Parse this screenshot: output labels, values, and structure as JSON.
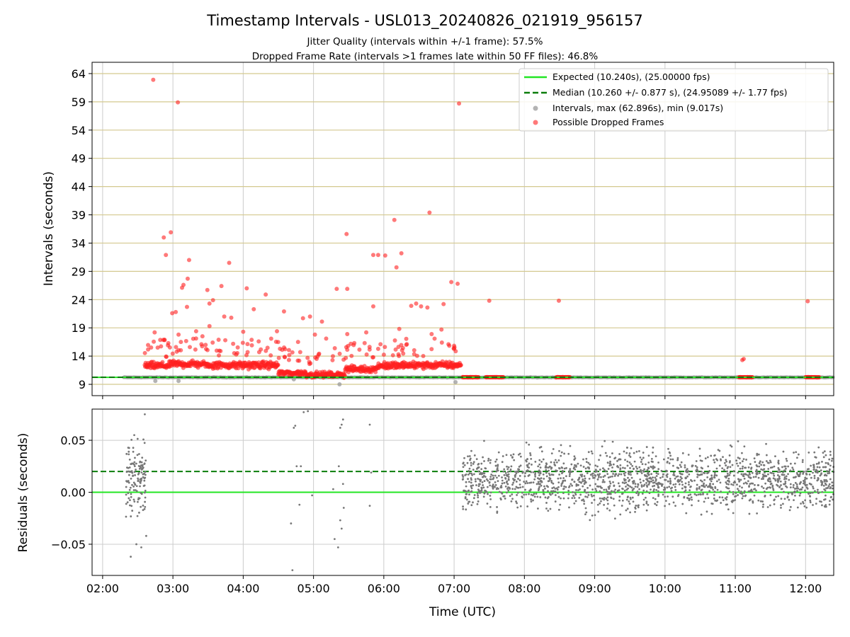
{
  "chart_data": [
    {
      "type": "scatter",
      "title": "Timestamp Intervals - USL013_20240826_021919_956157",
      "subtitle_lines": [
        "Jitter Quality (intervals within +/-1 frame): 57.5%",
        "Dropped Frame Rate (intervals >1 frames late within 50 FF files): 46.8%"
      ],
      "ylabel": "Intervals (seconds)",
      "xlabel": "",
      "xlim_hours": [
        1.85,
        12.4
      ],
      "ylim": [
        7.0,
        66.0
      ],
      "y_ticks": [
        9,
        14,
        19,
        24,
        29,
        34,
        39,
        44,
        49,
        54,
        59,
        64
      ],
      "y_tick_labels": [
        "9",
        "14",
        "19",
        "24",
        "29",
        "34",
        "39",
        "44",
        "49",
        "54",
        "59",
        "64"
      ],
      "grid": true,
      "legend_placement": "top-right",
      "legend": [
        "Expected (10.240s), (25.00000 fps)",
        "Median (10.260 +/- 0.877 s), (24.95089 +/- 1.77 fps)",
        "Intervals, max (62.896s), min (9.017s)",
        "Possible Dropped Frames"
      ],
      "expected_interval": 10.24,
      "median_interval": 10.26,
      "max_interval": 62.896,
      "min_interval": 9.017,
      "colors": {
        "expected": "#22e622",
        "median": "#0a7d0a",
        "intervals": "#9a9a9a",
        "dropped": "#ff2020",
        "gridline": "#d4c98f",
        "vgrid": "#cccccc"
      },
      "series": [
        {
          "name": "Possible Dropped Frames",
          "band_outliers": [
            [
              2.72,
              62.9
            ],
            [
              3.07,
              58.9
            ],
            [
              7.07,
              58.7
            ],
            [
              6.65,
              39.4
            ],
            [
              6.15,
              38.1
            ],
            [
              2.97,
              35.9
            ],
            [
              2.87,
              35.0
            ],
            [
              5.47,
              35.6
            ],
            [
              2.9,
              31.9
            ],
            [
              3.23,
              31.0
            ],
            [
              5.85,
              31.9
            ],
            [
              5.92,
              31.9
            ],
            [
              6.25,
              32.2
            ],
            [
              6.02,
              31.8
            ],
            [
              3.8,
              30.5
            ],
            [
              6.18,
              29.7
            ],
            [
              3.15,
              26.6
            ],
            [
              3.21,
              27.7
            ],
            [
              3.13,
              26.1
            ],
            [
              3.69,
              26.4
            ],
            [
              4.05,
              26.0
            ],
            [
              5.33,
              25.9
            ],
            [
              5.48,
              25.9
            ],
            [
              6.96,
              27.1
            ],
            [
              7.05,
              26.8
            ],
            [
              3.49,
              25.7
            ],
            [
              4.32,
              24.9
            ],
            [
              6.46,
              23.3
            ],
            [
              6.39,
              22.9
            ],
            [
              3.2,
              22.7
            ],
            [
              3.52,
              23.3
            ],
            [
              4.15,
              22.3
            ],
            [
              5.85,
              22.8
            ],
            [
              6.53,
              22.8
            ],
            [
              6.62,
              22.6
            ],
            [
              6.85,
              23.2
            ],
            [
              3.04,
              21.8
            ],
            [
              2.99,
              21.6
            ],
            [
              3.57,
              23.9
            ],
            [
              3.73,
              21.0
            ],
            [
              3.83,
              20.8
            ],
            [
              4.58,
              21.9
            ],
            [
              4.85,
              20.7
            ],
            [
              4.95,
              21.0
            ],
            [
              5.12,
              20.1
            ],
            [
              2.74,
              18.2
            ],
            [
              3.08,
              17.8
            ],
            [
              3.33,
              18.4
            ],
            [
              3.52,
              19.3
            ],
            [
              4.0,
              18.3
            ],
            [
              4.48,
              18.4
            ],
            [
              5.02,
              17.8
            ],
            [
              5.48,
              17.9
            ],
            [
              5.75,
              18.2
            ],
            [
              6.22,
              18.8
            ],
            [
              6.68,
              17.9
            ],
            [
              6.82,
              18.7
            ],
            [
              2.88,
              16.9
            ],
            [
              3.42,
              17.5
            ],
            [
              3.65,
              16.9
            ],
            [
              4.22,
              16.6
            ],
            [
              4.78,
              16.5
            ],
            [
              5.18,
              17.1
            ],
            [
              5.58,
              16.3
            ],
            [
              6.32,
              16.0
            ],
            [
              6.92,
              16.1
            ],
            [
              7.0,
              15.3
            ]
          ],
          "band_segments": [
            {
              "x_range": [
                2.6,
                2.95
              ],
              "y": 12.3,
              "spread": 0.9
            },
            {
              "x_range": [
                2.95,
                3.45
              ],
              "y": 12.6,
              "spread": 0.9
            },
            {
              "x_range": [
                3.45,
                3.95
              ],
              "y": 12.4,
              "spread": 0.9
            },
            {
              "x_range": [
                3.95,
                4.5
              ],
              "y": 12.4,
              "spread": 0.9
            },
            {
              "x_range": [
                4.5,
                4.9
              ],
              "y": 11.0,
              "spread": 0.7
            },
            {
              "x_range": [
                4.9,
                5.45
              ],
              "y": 10.7,
              "spread": 0.7
            },
            {
              "x_range": [
                5.45,
                5.9
              ],
              "y": 11.7,
              "spread": 0.8
            },
            {
              "x_range": [
                5.9,
                6.3
              ],
              "y": 12.3,
              "spread": 0.9
            },
            {
              "x_range": [
                6.3,
                7.1
              ],
              "y": 12.4,
              "spread": 0.9
            }
          ],
          "clusters": [
            {
              "x_range": [
                7.12,
                7.35
              ],
              "y": 10.26
            },
            {
              "x_range": [
                7.45,
                7.7
              ],
              "y": 10.26
            },
            {
              "x_range": [
                8.45,
                8.65
              ],
              "y": 10.26
            },
            {
              "x_range": [
                11.05,
                11.25
              ],
              "y": 10.26
            },
            {
              "x_range": [
                12.0,
                12.2
              ],
              "y": 10.26
            }
          ],
          "late_single": [
            [
              7.5,
              23.8
            ],
            [
              8.49,
              23.8
            ],
            [
              12.03,
              23.7
            ],
            [
              11.1,
              13.3
            ],
            [
              11.12,
              13.5
            ]
          ]
        },
        {
          "name": "Intervals, max (62.896s), min (9.017s)",
          "x_range": [
            2.3,
            12.4
          ],
          "y": 10.24,
          "sparse_low": [
            [
              2.75,
              9.6
            ],
            [
              3.08,
              9.6
            ],
            [
              5.37,
              9.0
            ],
            [
              7.02,
              9.4
            ],
            [
              4.72,
              9.9
            ]
          ]
        }
      ]
    },
    {
      "type": "scatter",
      "ylabel": "Residuals (seconds)",
      "xlabel": "Time (UTC)",
      "xlim_hours": [
        1.85,
        12.4
      ],
      "ylim": [
        -0.08,
        0.08
      ],
      "y_ticks": [
        -0.05,
        0.0,
        0.05
      ],
      "y_tick_labels": [
        "−0.05",
        "0.00",
        "0.05"
      ],
      "x_ticks": [
        2,
        3,
        4,
        5,
        6,
        7,
        8,
        9,
        10,
        11,
        12
      ],
      "x_tick_labels": [
        "02:00",
        "03:00",
        "04:00",
        "05:00",
        "06:00",
        "07:00",
        "08:00",
        "09:00",
        "10:00",
        "11:00",
        "12:00"
      ],
      "grid": true,
      "expected_residual": 0.0,
      "median_residual": 0.02,
      "colors": {
        "points": "#777777",
        "expected": "#22e622",
        "median": "#0a7d0a"
      },
      "series": [
        {
          "name": "Residuals",
          "dense_segments": [
            {
              "x_range": [
                2.33,
                2.62
              ],
              "center": 0.012,
              "spread": 0.03,
              "count": 130
            },
            {
              "x_range": [
                7.12,
                12.4
              ],
              "center": 0.012,
              "spread": 0.026,
              "count": 1700
            }
          ],
          "sparse_points": [
            [
              2.4,
              -0.062
            ],
            [
              2.48,
              -0.05
            ],
            [
              2.55,
              -0.053
            ],
            [
              2.62,
              -0.042
            ],
            [
              2.6,
              0.075
            ],
            [
              2.45,
              0.055
            ],
            [
              4.7,
              -0.075
            ],
            [
              4.72,
              0.062
            ],
            [
              4.74,
              0.064
            ],
            [
              4.8,
              -0.012
            ],
            [
              4.86,
              0.077
            ],
            [
              4.98,
              -0.003
            ],
            [
              4.92,
              0.078
            ],
            [
              4.68,
              -0.03
            ],
            [
              4.76,
              0.025
            ],
            [
              4.82,
              0.025
            ],
            [
              5.28,
              0.003
            ],
            [
              5.3,
              -0.045
            ],
            [
              5.35,
              -0.053
            ],
            [
              5.38,
              0.062
            ],
            [
              5.4,
              0.065
            ],
            [
              5.42,
              0.07
            ],
            [
              5.43,
              -0.015
            ],
            [
              5.38,
              -0.027
            ],
            [
              5.36,
              0.025
            ],
            [
              5.42,
              0.008
            ],
            [
              5.8,
              0.065
            ],
            [
              5.8,
              -0.013
            ],
            [
              5.82,
              0.019
            ],
            [
              5.4,
              -0.035
            ]
          ]
        }
      ]
    }
  ]
}
